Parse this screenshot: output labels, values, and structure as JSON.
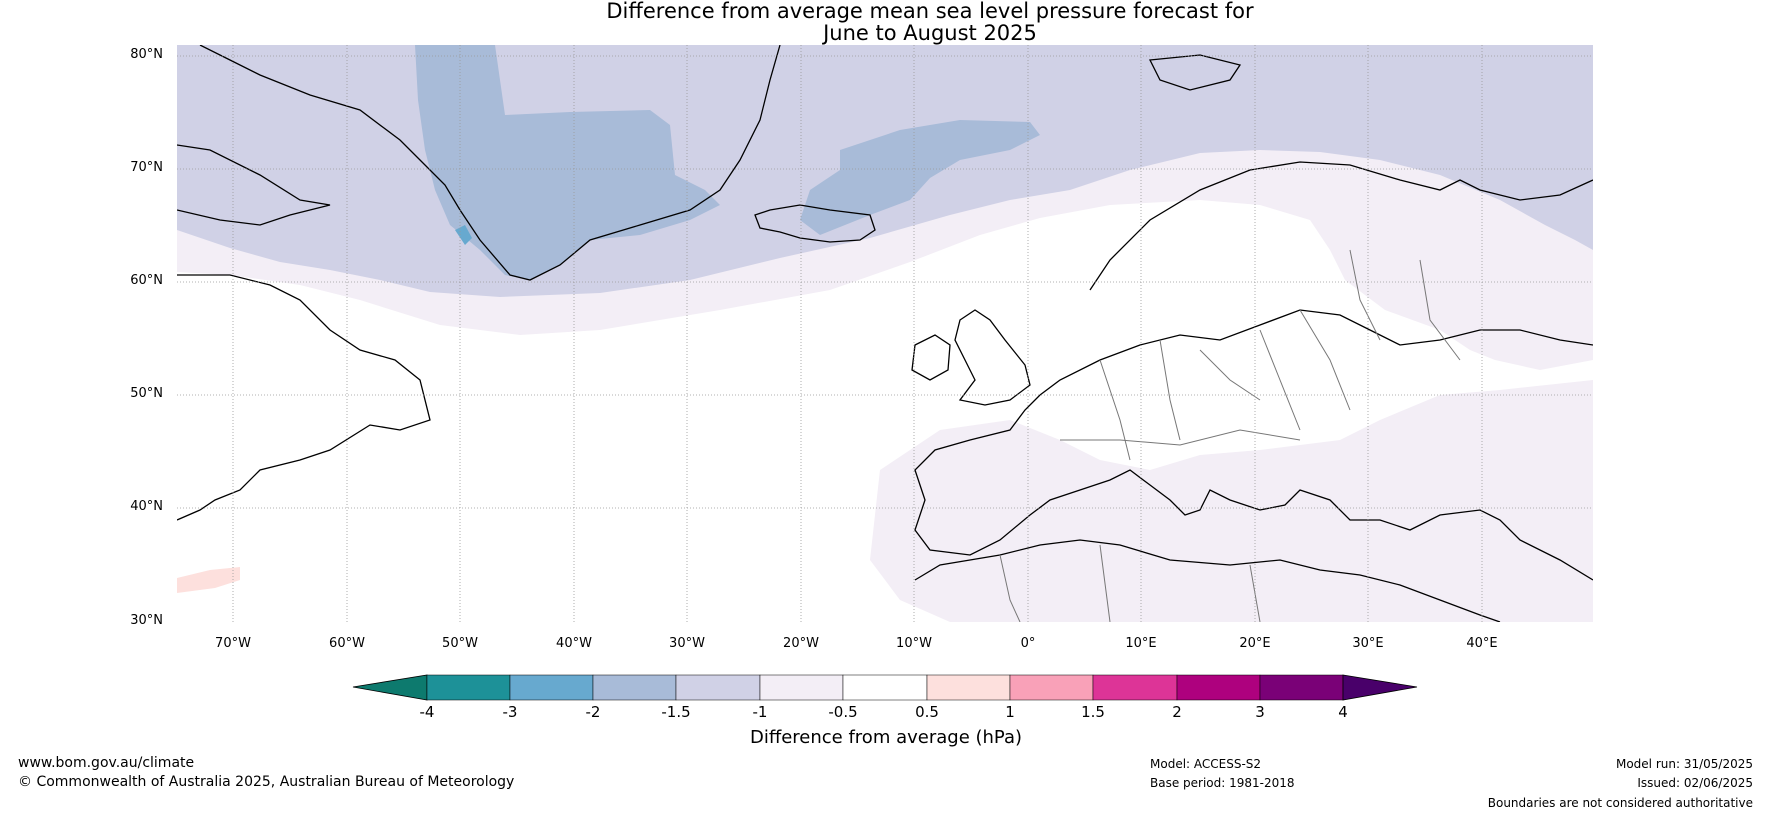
{
  "title": {
    "line1": "Difference from average mean sea level pressure forecast for",
    "line2": "June to August 2025"
  },
  "map": {
    "lat_labels": [
      "80°N",
      "70°N",
      "60°N",
      "50°N",
      "40°N",
      "30°N"
    ],
    "lon_labels": [
      "70°W",
      "60°W",
      "50°W",
      "40°W",
      "30°W",
      "20°W",
      "10°W",
      "0°",
      "10°E",
      "20°E",
      "30°E",
      "40°E"
    ],
    "colors": {
      "minus_2_to_minus_1_5": "#a8bbd8",
      "minus_1_5_to_minus_1": "#d0d1e6",
      "minus_1_to_minus_0_5": "#f3eef6",
      "zero": "#ffffff",
      "plus_0_5_to_1": "#fde0dd",
      "deep_negative": "#67a9cf"
    }
  },
  "colorbar": {
    "tick_labels": [
      "-4",
      "-3",
      "-2",
      "-1.5",
      "-1",
      "-0.5",
      "0.5",
      "1",
      "1.5",
      "2",
      "3",
      "4"
    ],
    "colors": [
      "#0d7a6e",
      "#1d9198",
      "#67a9cf",
      "#a8bbd8",
      "#d0d1e6",
      "#f3eef6",
      "#ffffff",
      "#fde0dd",
      "#f9a1b8",
      "#dd3497",
      "#ae017e",
      "#7a0177",
      "#49006a"
    ],
    "label": "Difference from average (hPa)"
  },
  "footer": {
    "website": "www.bom.gov.au/climate",
    "copyright": "© Commonwealth of Australia 2025, Australian Bureau of Meteorology",
    "model": "Model: ACCESS-S2",
    "base_period": "Base period: 1981-2018",
    "model_run": "Model run: 31/05/2025",
    "issued": "Issued: 02/06/2025",
    "disclaimer": "Boundaries are not considered authoritative"
  }
}
